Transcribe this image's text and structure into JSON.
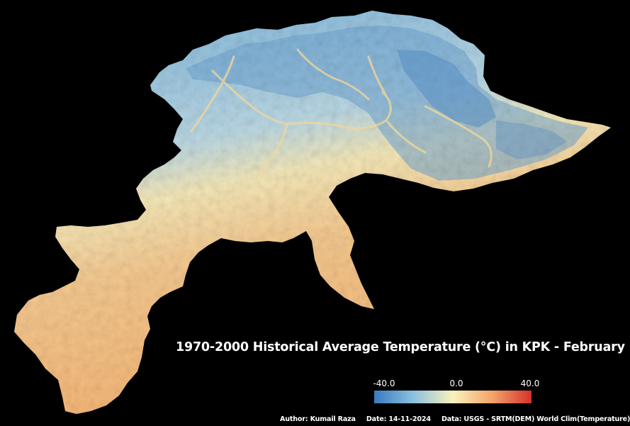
{
  "map": {
    "region": "KPK",
    "colors": {
      "background": "#000000",
      "cold": "#3b7dbf",
      "cool": "#8fc3de",
      "neutral": "#f7f1b9",
      "warm": "#f7bd7a",
      "hot": "#d8352a"
    }
  },
  "title": "1970-2000 Historical Average Temperature (°C) in KPK - February",
  "legend": {
    "min_label": "-40.0",
    "mid_label": "0.0",
    "max_label": "40.0",
    "min_value": -40,
    "mid_value": 0,
    "max_value": 40
  },
  "footer": {
    "author": "Author: Kumail Raza",
    "date": "Date: 14-11-2024",
    "data": "Data: USGS - SRTM(DEM)  World Clim(Temperature)"
  }
}
